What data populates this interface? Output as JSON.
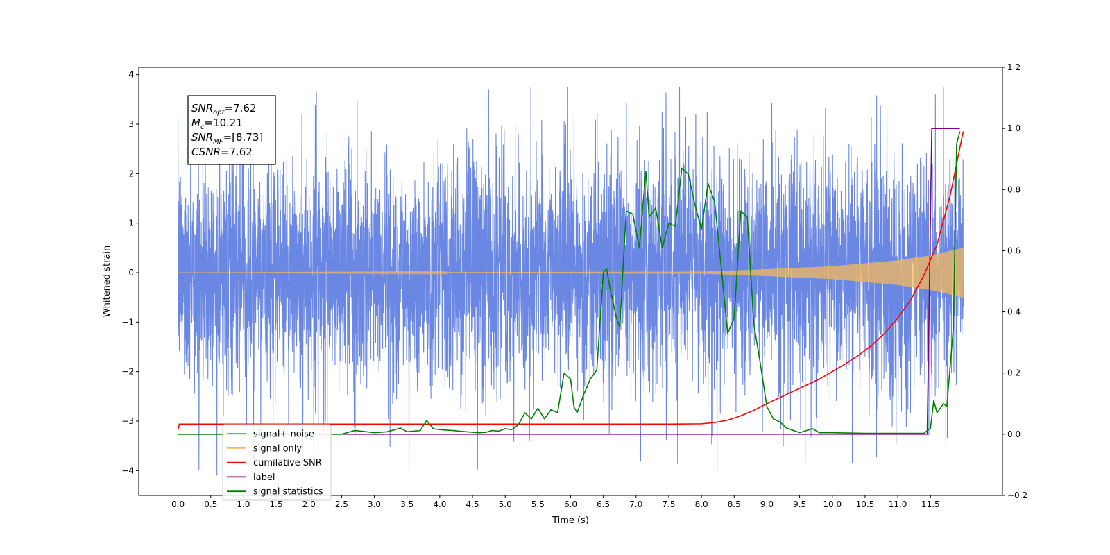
{
  "chart_data": {
    "type": "line",
    "xlabel": "Time (s)",
    "ylabel": "Whitened strain",
    "xlim": [
      -0.6,
      12.6
    ],
    "ylim_left": [
      -4.5,
      4.15
    ],
    "ylim_right": [
      -0.2,
      1.2
    ],
    "x_ticks": [
      0.0,
      0.5,
      1.0,
      1.5,
      2.0,
      2.5,
      3.0,
      3.5,
      4.0,
      4.5,
      5.0,
      5.5,
      6.0,
      6.5,
      7.0,
      7.5,
      8.0,
      8.5,
      9.0,
      9.5,
      10.0,
      10.5,
      11.0,
      11.5
    ],
    "x_tick_labels": [
      "0.0",
      "0.5",
      "1.0",
      "1.5",
      "2.0",
      "2.5",
      "3.0",
      "3.5",
      "4.0",
      "4.5",
      "5.0",
      "5.5",
      "6.0",
      "6.5",
      "7.0",
      "7.5",
      "8.0",
      "8.5",
      "9.0",
      "9.5",
      "10.0",
      "10.5",
      "11.0",
      "11.5"
    ],
    "y_ticks_left": [
      -4,
      -3,
      -2,
      -1,
      0,
      1,
      2,
      3,
      4
    ],
    "y_tick_labels_left": [
      "−4",
      "−3",
      "−2",
      "−1",
      "0",
      "1",
      "2",
      "3",
      "4"
    ],
    "y_ticks_right": [
      -0.2,
      0.0,
      0.2,
      0.4,
      0.6,
      0.8,
      1.0,
      1.2
    ],
    "y_tick_labels_right": [
      "−0.2",
      "0.0",
      "0.2",
      "0.4",
      "0.6",
      "0.8",
      "1.0",
      "1.2"
    ],
    "legend_position": "lower-left",
    "legend": [
      {
        "label": "signal+ noise",
        "color": "#6a87e3"
      },
      {
        "label": "signal only",
        "color": "#f5b85a"
      },
      {
        "label": "cumilative SNR",
        "color": "#ff0000"
      },
      {
        "label": "label",
        "color": "#800080"
      },
      {
        "label": "signal statistics",
        "color": "#008000"
      }
    ],
    "annotation": [
      {
        "name": "SNR",
        "sub": "opt",
        "value": "=7.62"
      },
      {
        "name": "M",
        "sub": "c",
        "value": "=10.21"
      },
      {
        "name": "SNR",
        "sub": "MF",
        "value": "=[8.73]"
      },
      {
        "name": "CSNR",
        "sub": "",
        "value": "=7.62"
      }
    ],
    "series": [
      {
        "name": "signal+ noise",
        "axis": "left",
        "color": "#6a87e3",
        "style": "dense_noise",
        "x_range": [
          0.0,
          12.0
        ],
        "typical_range": [
          -1.8,
          1.8
        ],
        "extremes": [
          -4.1,
          3.75
        ]
      },
      {
        "name": "signal only",
        "axis": "left",
        "color": "#f5b85a",
        "style": "chirp_envelope",
        "x_range": [
          0.0,
          12.0
        ],
        "envelope": {
          "x": [
            0,
            8.0,
            9.0,
            10.0,
            11.0,
            11.5,
            12.0
          ],
          "amp": [
            0.0,
            0.02,
            0.07,
            0.13,
            0.25,
            0.35,
            0.5
          ]
        }
      },
      {
        "name": "cumilative SNR",
        "axis": "right",
        "color": "#ff0000",
        "x": [
          0.0,
          0.02,
          1.0,
          2.0,
          3.0,
          4.0,
          5.0,
          6.0,
          7.0,
          7.5,
          8.0,
          8.2,
          8.4,
          8.6,
          8.8,
          9.0,
          9.2,
          9.4,
          9.6,
          9.8,
          10.0,
          10.2,
          10.4,
          10.6,
          10.8,
          11.0,
          11.2,
          11.4,
          11.6,
          11.8,
          12.0
        ],
        "y": [
          0.015,
          0.033,
          0.033,
          0.033,
          0.033,
          0.033,
          0.033,
          0.033,
          0.033,
          0.033,
          0.034,
          0.038,
          0.046,
          0.06,
          0.078,
          0.1,
          0.12,
          0.14,
          0.16,
          0.18,
          0.205,
          0.23,
          0.258,
          0.29,
          0.33,
          0.38,
          0.44,
          0.52,
          0.62,
          0.78,
          0.99
        ]
      },
      {
        "name": "label",
        "axis": "right",
        "color": "#800080",
        "x": [
          0.0,
          11.45,
          11.52,
          11.95
        ],
        "y": [
          0.0,
          0.0,
          1.0,
          1.0
        ]
      },
      {
        "name": "signal statistics",
        "axis": "right",
        "color": "#008000",
        "x": [
          0.0,
          2.0,
          2.5,
          2.7,
          2.8,
          3.0,
          3.2,
          3.4,
          3.5,
          3.7,
          3.8,
          3.9,
          4.0,
          4.2,
          4.4,
          4.6,
          4.7,
          4.8,
          4.9,
          5.0,
          5.1,
          5.2,
          5.3,
          5.4,
          5.5,
          5.6,
          5.7,
          5.8,
          5.9,
          6.0,
          6.05,
          6.1,
          6.2,
          6.3,
          6.4,
          6.5,
          6.55,
          6.6,
          6.7,
          6.75,
          6.85,
          6.95,
          7.05,
          7.15,
          7.2,
          7.3,
          7.4,
          7.5,
          7.6,
          7.7,
          7.8,
          7.9,
          8.0,
          8.1,
          8.2,
          8.3,
          8.4,
          8.5,
          8.6,
          8.7,
          8.8,
          8.9,
          9.0,
          9.1,
          9.2,
          9.3,
          9.5,
          9.7,
          9.8,
          10.0,
          10.5,
          11.0,
          11.3,
          11.4,
          11.5,
          11.55,
          11.6,
          11.7,
          11.75,
          11.85,
          11.9,
          11.95
        ],
        "y": [
          0.0,
          0.0,
          0.0,
          0.012,
          0.01,
          0.005,
          0.008,
          0.02,
          0.008,
          0.012,
          0.045,
          0.018,
          0.015,
          0.012,
          0.008,
          0.005,
          0.006,
          0.012,
          0.01,
          0.018,
          0.015,
          0.03,
          0.07,
          0.05,
          0.085,
          0.05,
          0.08,
          0.07,
          0.2,
          0.18,
          0.09,
          0.07,
          0.13,
          0.18,
          0.21,
          0.53,
          0.54,
          0.48,
          0.38,
          0.35,
          0.73,
          0.72,
          0.61,
          0.86,
          0.71,
          0.74,
          0.61,
          0.69,
          0.68,
          0.87,
          0.85,
          0.75,
          0.67,
          0.82,
          0.76,
          0.55,
          0.33,
          0.38,
          0.73,
          0.71,
          0.36,
          0.23,
          0.09,
          0.05,
          0.04,
          0.02,
          0.005,
          0.018,
          0.005,
          0.005,
          0.003,
          0.003,
          0.003,
          0.003,
          0.02,
          0.11,
          0.07,
          0.1,
          0.09,
          0.35,
          0.95,
          0.99
        ]
      }
    ]
  }
}
